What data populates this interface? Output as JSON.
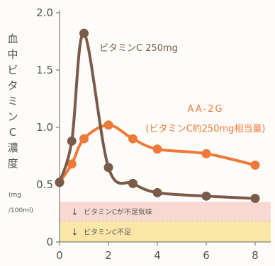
{
  "chart_data": {
    "type": "line",
    "ylabel": "血中ビタミンC濃度",
    "yunit_top": "(mg",
    "yunit_bottom": "/100ml)",
    "xlabel": "",
    "xlim": [
      0,
      8
    ],
    "ylim": [
      0,
      2.0
    ],
    "x_ticks": [
      "0",
      "2",
      "4",
      "6",
      "8"
    ],
    "y_ticks": [
      "0",
      "0.5",
      "1.0",
      "1.5",
      "2.0"
    ],
    "series": [
      {
        "name": "ビタミンC 250mg",
        "color": "#7a5a48",
        "x": [
          0,
          0.5,
          1,
          2,
          3,
          4,
          6,
          8
        ],
        "y": [
          0.52,
          0.88,
          1.82,
          0.65,
          0.51,
          0.43,
          0.4,
          0.38
        ]
      },
      {
        "name": "AA-2G",
        "name_sub": "(ビタミンC約250mg相当量)",
        "color": "#ee7a3a",
        "x": [
          0,
          0.5,
          1,
          2,
          3,
          4,
          6,
          8
        ],
        "y": [
          0.52,
          0.68,
          0.9,
          1.02,
          0.9,
          0.81,
          0.77,
          0.67
        ]
      }
    ],
    "bands": [
      {
        "label": "ビタミンCが不足気味",
        "range": [
          0.18,
          0.35
        ],
        "color": "#f7d9d2",
        "arrow": "↓"
      },
      {
        "label": "ビタミンC不足",
        "range": [
          0.0,
          0.18
        ],
        "color": "#fae7a8",
        "arrow": "↓"
      }
    ],
    "grid": false
  }
}
